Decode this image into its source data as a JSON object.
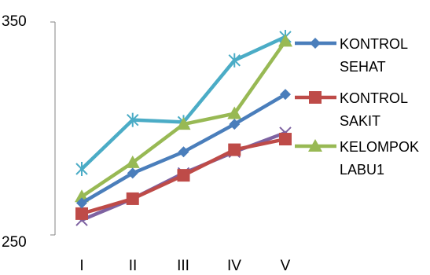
{
  "chart_data": {
    "type": "line",
    "title": "",
    "xlabel": "",
    "ylabel": "",
    "categories": [
      "I",
      "II",
      "III",
      "IV",
      "V"
    ],
    "ylim": [
      250,
      350
    ],
    "y_tick_labels": [
      "350",
      "250"
    ],
    "y_ticks": [
      350,
      250
    ],
    "grid": false,
    "legend_position": "right",
    "series": [
      {
        "name": "KONTROL SEHAT",
        "legend_lines": [
          "KONTROL",
          "SEHAT"
        ],
        "color": "#4A7EBB",
        "marker": "diamond",
        "values": [
          265,
          279,
          289,
          302,
          316
        ]
      },
      {
        "name": "KONTROL SAKIT",
        "legend_lines": [
          "KONTROL",
          "SAKIT"
        ],
        "color": "#BE4B48",
        "marker": "square",
        "values": [
          260,
          267,
          278,
          290,
          295
        ]
      },
      {
        "name": "KELOMPOK LABU1",
        "legend_lines": [
          "KELOMPOK",
          "LABU1"
        ],
        "color": "#98B954",
        "marker": "triangle",
        "values": [
          268,
          284,
          302,
          307,
          341
        ]
      },
      {
        "name": "",
        "legend_lines": [],
        "color": "#7E62A1",
        "marker": "x",
        "values": [
          257,
          267,
          279,
          289,
          298
        ]
      },
      {
        "name": "",
        "legend_lines": [],
        "color": "#4BACC6",
        "marker": "star",
        "values": [
          281,
          304,
          303,
          332,
          343
        ]
      }
    ]
  }
}
